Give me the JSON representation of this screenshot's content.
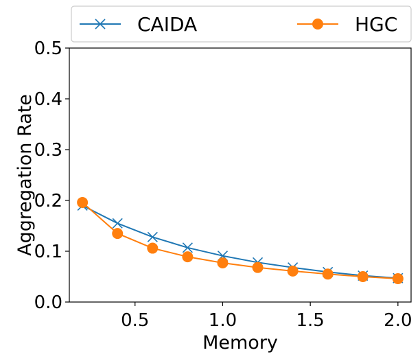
{
  "chart_data": {
    "type": "line",
    "xlabel": "Memory",
    "ylabel": "Aggregation Rate",
    "xlim": [
      0.125,
      2.075
    ],
    "ylim": [
      0.0,
      0.5
    ],
    "xticks": [
      "0.5",
      "1.0",
      "1.5",
      "2.0"
    ],
    "xtick_values": [
      0.5,
      1.0,
      1.5,
      2.0
    ],
    "yticks": [
      "0.0",
      "0.1",
      "0.2",
      "0.3",
      "0.4",
      "0.5"
    ],
    "ytick_values": [
      0.0,
      0.1,
      0.2,
      0.3,
      0.4,
      0.5
    ],
    "grid": false,
    "legend_position": "top",
    "x": [
      0.2,
      0.4,
      0.6,
      0.8,
      1.0,
      1.2,
      1.4,
      1.6,
      1.8,
      2.0
    ],
    "series": [
      {
        "name": "CAIDA",
        "color": "#1f77b4",
        "marker": "x",
        "values": [
          0.19,
          0.155,
          0.128,
          0.107,
          0.091,
          0.078,
          0.068,
          0.059,
          0.052,
          0.047
        ]
      },
      {
        "name": "HGC",
        "color": "#ff7f0e",
        "marker": "circle",
        "values": [
          0.196,
          0.135,
          0.106,
          0.089,
          0.077,
          0.068,
          0.061,
          0.055,
          0.05,
          0.046
        ]
      }
    ]
  }
}
